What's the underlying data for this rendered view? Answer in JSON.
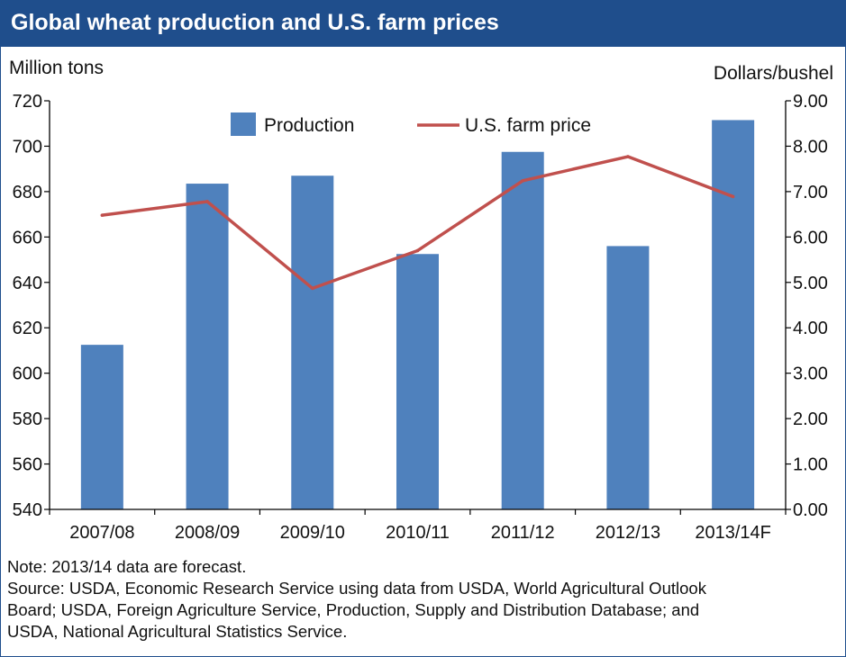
{
  "title": "Global wheat production and U.S. farm prices",
  "notes": {
    "note": "Note:  2013/14 data are forecast.",
    "source_lines": [
      "Source: USDA, Economic Research Service using data from USDA, World Agricultural Outlook",
      "Board; USDA, Foreign Agriculture Service, Production, Supply and Distribution Database; and",
      "USDA, National Agricultural Statistics Service."
    ]
  },
  "colors": {
    "header": "#1f4e8c",
    "bars": "#4f81bd",
    "line": "#c0504d"
  },
  "chart_data": {
    "type": "bar",
    "categories": [
      "2007/08",
      "2008/09",
      "2009/10",
      "2010/11",
      "2011/12",
      "2012/13",
      "2013/14F"
    ],
    "series": [
      {
        "name": "Production",
        "type": "bar",
        "axis": "left",
        "values": [
          612.5,
          683.5,
          687,
          652.5,
          697.5,
          656,
          711.5
        ]
      },
      {
        "name": "U.S. farm price",
        "type": "line",
        "axis": "right",
        "values": [
          6.48,
          6.78,
          4.87,
          5.7,
          7.24,
          7.77,
          6.89
        ]
      }
    ],
    "ylabel_left": "Million tons",
    "ylabel_right": "Dollars/bushel",
    "ylim_left": [
      540,
      720
    ],
    "ylim_right": [
      0,
      9
    ],
    "yticks_left": [
      "540",
      "560",
      "580",
      "600",
      "620",
      "640",
      "660",
      "680",
      "700",
      "720"
    ],
    "yticks_right": [
      "0.00",
      "1.00",
      "2.00",
      "3.00",
      "4.00",
      "5.00",
      "6.00",
      "7.00",
      "8.00",
      "9.00"
    ],
    "legend": {
      "position": "top-center",
      "entries": [
        "Production",
        "U.S. farm price"
      ]
    },
    "grid": false
  }
}
